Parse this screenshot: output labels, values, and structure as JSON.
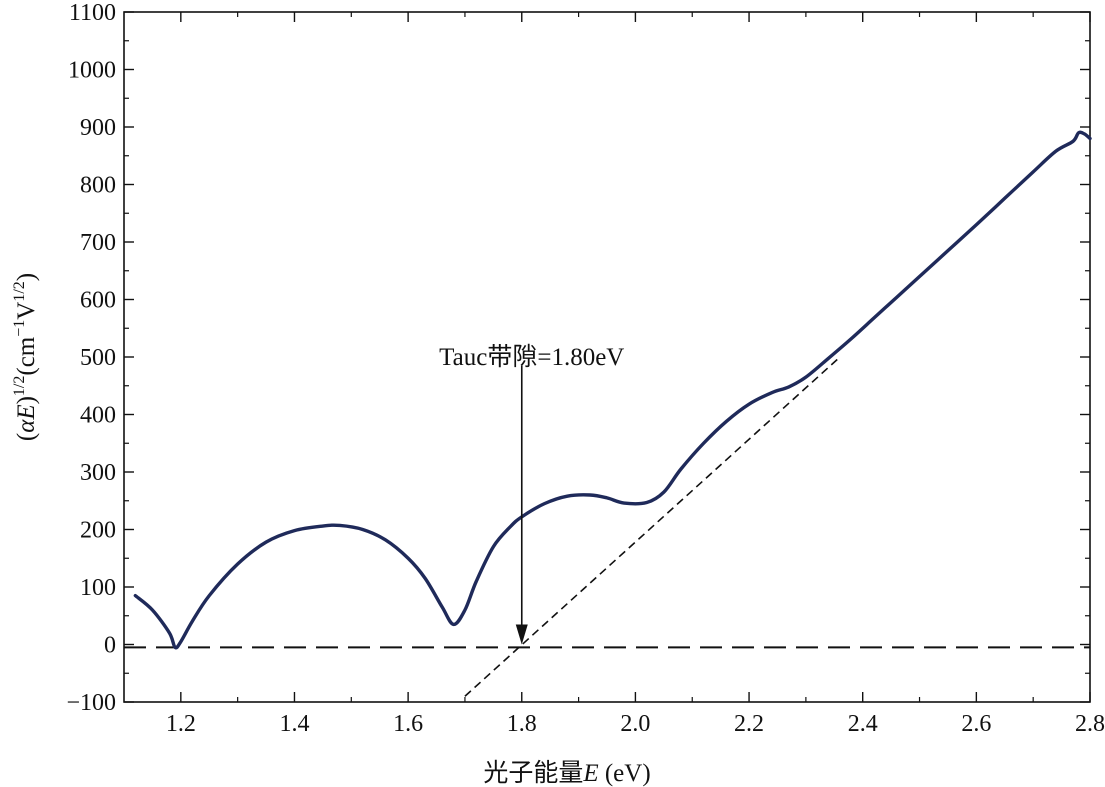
{
  "chart_data": {
    "type": "line",
    "title": "",
    "xlabel": "光子能量E (eV)",
    "ylabel": "(αE)1/2(cm−1V1/2)",
    "ylabel_parts": {
      "open": "(",
      "alpha": "α",
      "E": "E",
      "close": ")",
      "exp1": "1/2",
      "paren": "(cm",
      "exp2": "−1",
      "mid": "V",
      "exp3": "1/2",
      "end": ")"
    },
    "xlabel_parts": {
      "cn": "光子能量",
      "E": "E",
      "unit": " (eV)"
    },
    "xlim": [
      1.1,
      2.8
    ],
    "ylim": [
      -100,
      1100
    ],
    "xticks": [
      "1.2",
      "1.4",
      "1.6",
      "1.8",
      "2.0",
      "2.2",
      "2.4",
      "2.6",
      "2.8"
    ],
    "yticks": [
      "−100",
      "0",
      "100",
      "200",
      "300",
      "400",
      "500",
      "600",
      "700",
      "800",
      "900",
      "1000",
      "1100"
    ],
    "grid": false,
    "series": [
      {
        "color": "#1f2a5a",
        "x": [
          1.12,
          1.15,
          1.18,
          1.19,
          1.2,
          1.22,
          1.25,
          1.3,
          1.35,
          1.4,
          1.45,
          1.48,
          1.52,
          1.56,
          1.6,
          1.63,
          1.66,
          1.68,
          1.7,
          1.72,
          1.75,
          1.78,
          1.8,
          1.84,
          1.88,
          1.92,
          1.95,
          1.98,
          2.02,
          2.05,
          2.08,
          2.12,
          2.16,
          2.2,
          2.24,
          2.27,
          2.3,
          2.34,
          2.38,
          2.42,
          2.46,
          2.5,
          2.55,
          2.6,
          2.65,
          2.7,
          2.74,
          2.77,
          2.78,
          2.79,
          2.8
        ],
        "y": [
          85,
          60,
          20,
          -5,
          5,
          40,
          85,
          140,
          178,
          198,
          206,
          207,
          200,
          182,
          150,
          115,
          65,
          35,
          60,
          110,
          170,
          205,
          222,
          245,
          258,
          260,
          255,
          246,
          247,
          265,
          305,
          350,
          388,
          418,
          438,
          448,
          465,
          498,
          532,
          568,
          604,
          640,
          685,
          730,
          776,
          822,
          858,
          875,
          890,
          888,
          880
        ]
      }
    ],
    "tangent": {
      "x": [
        1.7,
        2.36
      ],
      "y": [
        -90,
        500
      ]
    },
    "baseline": {
      "y": -5
    },
    "annotation": {
      "text": "Tauc带隙=1.80eV",
      "x": 1.8,
      "y_text": 500,
      "arrow_from": 485,
      "arrow_to": 0
    }
  }
}
